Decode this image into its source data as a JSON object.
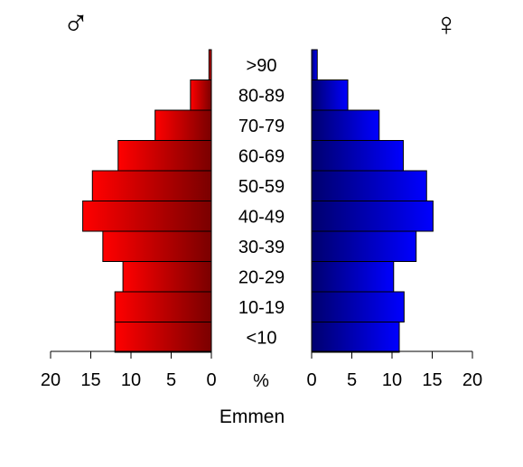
{
  "chart_data": {
    "type": "bar",
    "subtype": "population-pyramid",
    "title": "Emmen",
    "unit_label": "%",
    "categories": [
      ">90",
      "80-89",
      "70-79",
      "60-69",
      "50-59",
      "40-49",
      "30-39",
      "20-29",
      "10-19",
      "<10"
    ],
    "series": [
      {
        "name": "♂",
        "side": "left",
        "color": "#ff0000",
        "color_inner": "#7a0000",
        "values": [
          0.3,
          2.6,
          7.0,
          11.6,
          14.8,
          16.0,
          13.5,
          11.0,
          12.0,
          12.0
        ]
      },
      {
        "name": "♀",
        "side": "right",
        "color": "#0000ff",
        "color_inner": "#00006e",
        "values": [
          0.7,
          4.5,
          8.4,
          11.4,
          14.3,
          15.1,
          13.0,
          10.2,
          11.5,
          10.9
        ]
      }
    ],
    "xlim": [
      0,
      20
    ],
    "ticks": [
      20,
      15,
      10,
      5,
      0
    ],
    "tick_labels_left": [
      "20",
      "15",
      "10",
      "5",
      "0"
    ],
    "tick_labels_right": [
      "0",
      "5",
      "10",
      "15",
      "20"
    ],
    "grid": false,
    "legend": "symbols at top corners"
  }
}
